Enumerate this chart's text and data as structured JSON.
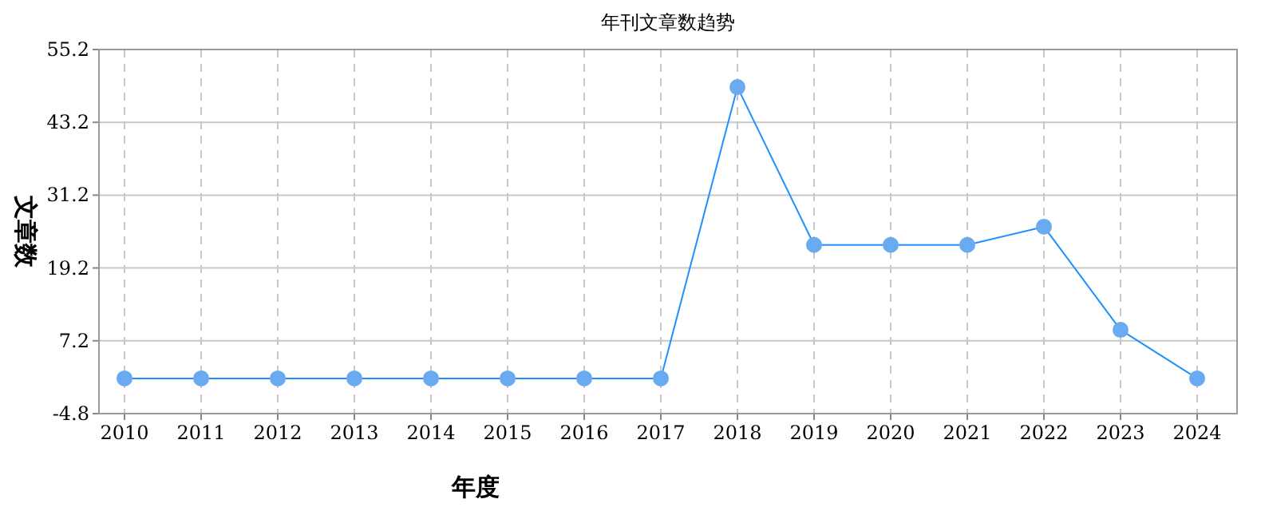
{
  "chart_data": {
    "type": "line",
    "title": "年刊文章数趋势",
    "xlabel": "年度",
    "ylabel": "文章数",
    "categories": [
      "2010",
      "2011",
      "2012",
      "2013",
      "2014",
      "2015",
      "2016",
      "2017",
      "2018",
      "2019",
      "2020",
      "2021",
      "2022",
      "2023",
      "2024"
    ],
    "series": [
      {
        "color": "#1e90ff",
        "values": [
          1,
          1,
          1,
          1,
          1,
          1,
          1,
          1,
          49,
          23,
          23,
          23,
          26,
          9,
          1
        ]
      }
    ],
    "ylim": [
      -4.8,
      55.2
    ],
    "yticks": [
      -4.8,
      7.2,
      19.2,
      31.2,
      43.2,
      55.2
    ],
    "grid": true,
    "marker": "circle",
    "line_style": "solid"
  }
}
